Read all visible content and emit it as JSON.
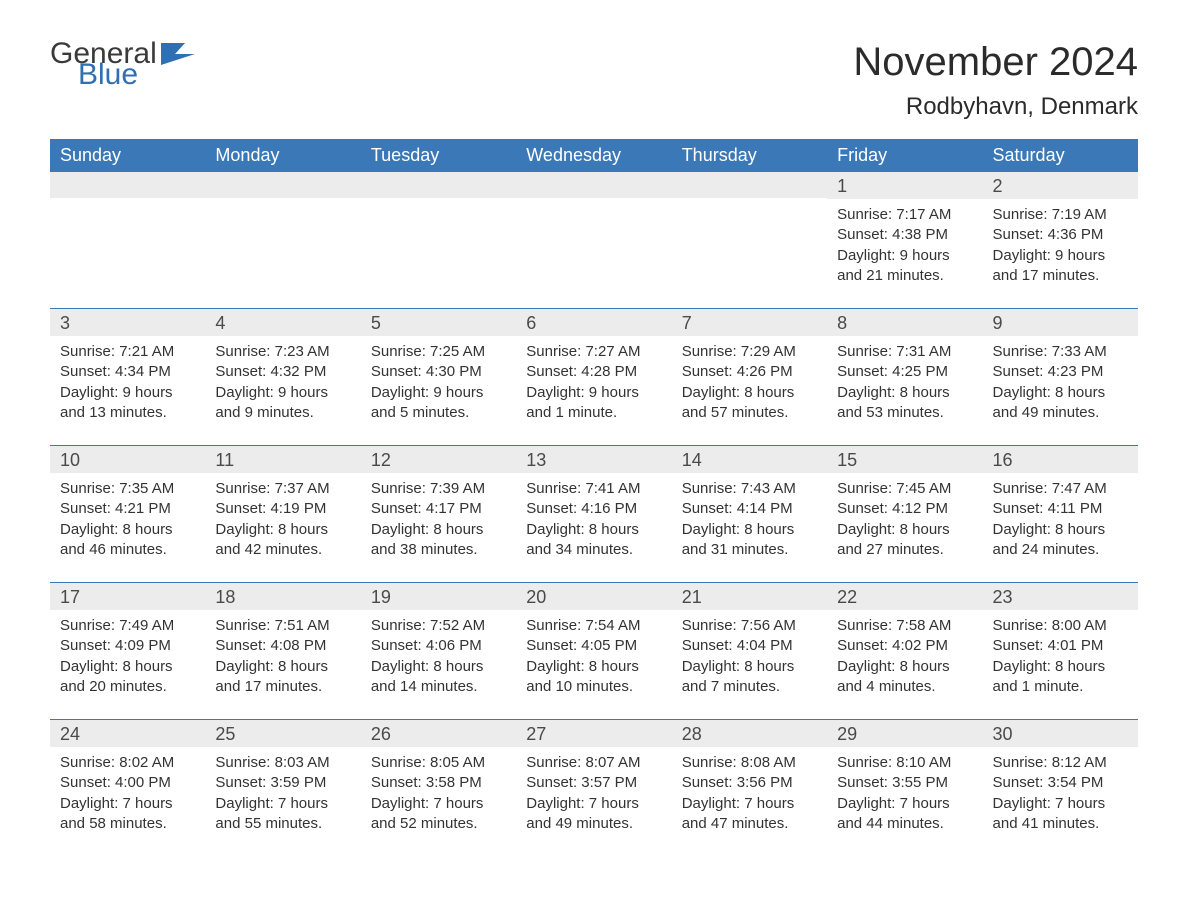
{
  "logo": {
    "text1": "General",
    "text2": "Blue"
  },
  "title": "November 2024",
  "location": "Rodbyhavn, Denmark",
  "colors": {
    "header_bg": "#3b78b7",
    "header_text": "#ffffff",
    "numbar_bg": "#ececec",
    "text": "#333333",
    "rule": "#3b78b7",
    "logo_blue": "#2f6fb3",
    "page_bg": "#ffffff"
  },
  "day_labels": [
    "Sunday",
    "Monday",
    "Tuesday",
    "Wednesday",
    "Thursday",
    "Friday",
    "Saturday"
  ],
  "weeks": [
    [
      {
        "n": "",
        "lines": []
      },
      {
        "n": "",
        "lines": []
      },
      {
        "n": "",
        "lines": []
      },
      {
        "n": "",
        "lines": []
      },
      {
        "n": "",
        "lines": []
      },
      {
        "n": "1",
        "lines": [
          "Sunrise: 7:17 AM",
          "Sunset: 4:38 PM",
          "Daylight: 9 hours",
          "and 21 minutes."
        ]
      },
      {
        "n": "2",
        "lines": [
          "Sunrise: 7:19 AM",
          "Sunset: 4:36 PM",
          "Daylight: 9 hours",
          "and 17 minutes."
        ]
      }
    ],
    [
      {
        "n": "3",
        "lines": [
          "Sunrise: 7:21 AM",
          "Sunset: 4:34 PM",
          "Daylight: 9 hours",
          "and 13 minutes."
        ]
      },
      {
        "n": "4",
        "lines": [
          "Sunrise: 7:23 AM",
          "Sunset: 4:32 PM",
          "Daylight: 9 hours",
          "and 9 minutes."
        ]
      },
      {
        "n": "5",
        "lines": [
          "Sunrise: 7:25 AM",
          "Sunset: 4:30 PM",
          "Daylight: 9 hours",
          "and 5 minutes."
        ]
      },
      {
        "n": "6",
        "lines": [
          "Sunrise: 7:27 AM",
          "Sunset: 4:28 PM",
          "Daylight: 9 hours",
          "and 1 minute."
        ]
      },
      {
        "n": "7",
        "lines": [
          "Sunrise: 7:29 AM",
          "Sunset: 4:26 PM",
          "Daylight: 8 hours",
          "and 57 minutes."
        ]
      },
      {
        "n": "8",
        "lines": [
          "Sunrise: 7:31 AM",
          "Sunset: 4:25 PM",
          "Daylight: 8 hours",
          "and 53 minutes."
        ]
      },
      {
        "n": "9",
        "lines": [
          "Sunrise: 7:33 AM",
          "Sunset: 4:23 PM",
          "Daylight: 8 hours",
          "and 49 minutes."
        ]
      }
    ],
    [
      {
        "n": "10",
        "lines": [
          "Sunrise: 7:35 AM",
          "Sunset: 4:21 PM",
          "Daylight: 8 hours",
          "and 46 minutes."
        ]
      },
      {
        "n": "11",
        "lines": [
          "Sunrise: 7:37 AM",
          "Sunset: 4:19 PM",
          "Daylight: 8 hours",
          "and 42 minutes."
        ]
      },
      {
        "n": "12",
        "lines": [
          "Sunrise: 7:39 AM",
          "Sunset: 4:17 PM",
          "Daylight: 8 hours",
          "and 38 minutes."
        ]
      },
      {
        "n": "13",
        "lines": [
          "Sunrise: 7:41 AM",
          "Sunset: 4:16 PM",
          "Daylight: 8 hours",
          "and 34 minutes."
        ]
      },
      {
        "n": "14",
        "lines": [
          "Sunrise: 7:43 AM",
          "Sunset: 4:14 PM",
          "Daylight: 8 hours",
          "and 31 minutes."
        ]
      },
      {
        "n": "15",
        "lines": [
          "Sunrise: 7:45 AM",
          "Sunset: 4:12 PM",
          "Daylight: 8 hours",
          "and 27 minutes."
        ]
      },
      {
        "n": "16",
        "lines": [
          "Sunrise: 7:47 AM",
          "Sunset: 4:11 PM",
          "Daylight: 8 hours",
          "and 24 minutes."
        ]
      }
    ],
    [
      {
        "n": "17",
        "lines": [
          "Sunrise: 7:49 AM",
          "Sunset: 4:09 PM",
          "Daylight: 8 hours",
          "and 20 minutes."
        ]
      },
      {
        "n": "18",
        "lines": [
          "Sunrise: 7:51 AM",
          "Sunset: 4:08 PM",
          "Daylight: 8 hours",
          "and 17 minutes."
        ]
      },
      {
        "n": "19",
        "lines": [
          "Sunrise: 7:52 AM",
          "Sunset: 4:06 PM",
          "Daylight: 8 hours",
          "and 14 minutes."
        ]
      },
      {
        "n": "20",
        "lines": [
          "Sunrise: 7:54 AM",
          "Sunset: 4:05 PM",
          "Daylight: 8 hours",
          "and 10 minutes."
        ]
      },
      {
        "n": "21",
        "lines": [
          "Sunrise: 7:56 AM",
          "Sunset: 4:04 PM",
          "Daylight: 8 hours",
          "and 7 minutes."
        ]
      },
      {
        "n": "22",
        "lines": [
          "Sunrise: 7:58 AM",
          "Sunset: 4:02 PM",
          "Daylight: 8 hours",
          "and 4 minutes."
        ]
      },
      {
        "n": "23",
        "lines": [
          "Sunrise: 8:00 AM",
          "Sunset: 4:01 PM",
          "Daylight: 8 hours",
          "and 1 minute."
        ]
      }
    ],
    [
      {
        "n": "24",
        "lines": [
          "Sunrise: 8:02 AM",
          "Sunset: 4:00 PM",
          "Daylight: 7 hours",
          "and 58 minutes."
        ]
      },
      {
        "n": "25",
        "lines": [
          "Sunrise: 8:03 AM",
          "Sunset: 3:59 PM",
          "Daylight: 7 hours",
          "and 55 minutes."
        ]
      },
      {
        "n": "26",
        "lines": [
          "Sunrise: 8:05 AM",
          "Sunset: 3:58 PM",
          "Daylight: 7 hours",
          "and 52 minutes."
        ]
      },
      {
        "n": "27",
        "lines": [
          "Sunrise: 8:07 AM",
          "Sunset: 3:57 PM",
          "Daylight: 7 hours",
          "and 49 minutes."
        ]
      },
      {
        "n": "28",
        "lines": [
          "Sunrise: 8:08 AM",
          "Sunset: 3:56 PM",
          "Daylight: 7 hours",
          "and 47 minutes."
        ]
      },
      {
        "n": "29",
        "lines": [
          "Sunrise: 8:10 AM",
          "Sunset: 3:55 PM",
          "Daylight: 7 hours",
          "and 44 minutes."
        ]
      },
      {
        "n": "30",
        "lines": [
          "Sunrise: 8:12 AM",
          "Sunset: 3:54 PM",
          "Daylight: 7 hours",
          "and 41 minutes."
        ]
      }
    ]
  ]
}
